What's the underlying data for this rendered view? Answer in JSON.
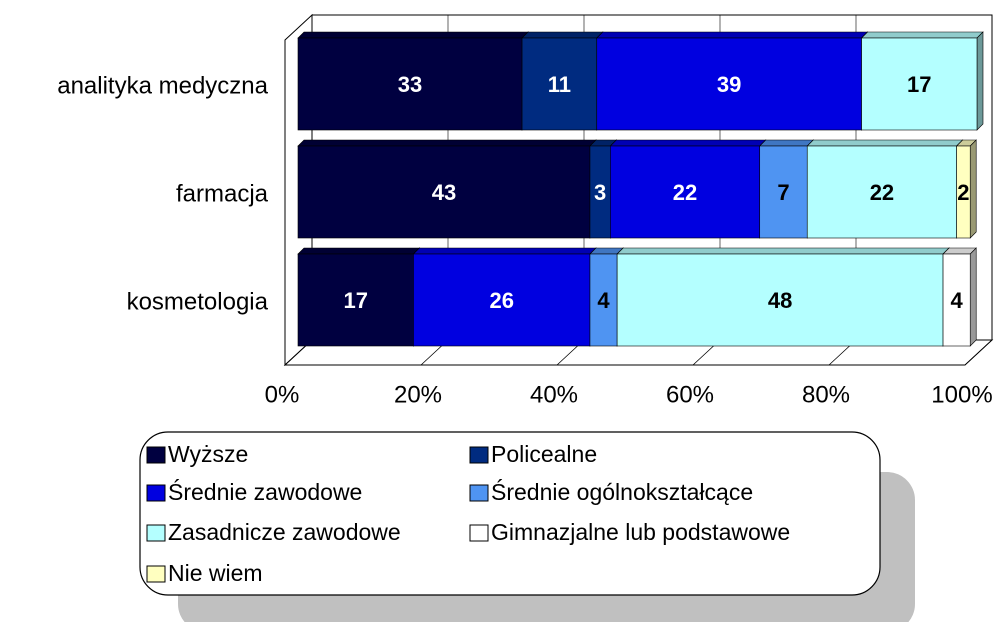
{
  "chart_data": {
    "type": "bar",
    "orientation": "horizontal",
    "stacked": "percent",
    "categories": [
      "analityka medyczna",
      "farmacja",
      "kosmetologia"
    ],
    "series": [
      {
        "name": "Wyższe",
        "color": "#000040",
        "values": [
          33,
          43,
          17
        ]
      },
      {
        "name": "Policealne",
        "color": "#002b80",
        "values": [
          11,
          3,
          null
        ]
      },
      {
        "name": "Średnie zawodowe",
        "color": "#0000e0",
        "values": [
          39,
          22,
          26
        ]
      },
      {
        "name": "Średnie ogólnokształcące",
        "color": "#4f94f2",
        "values": [
          null,
          7,
          4
        ]
      },
      {
        "name": "Zasadnicze zawodowe",
        "color": "#b4ffff",
        "values": [
          17,
          22,
          48
        ]
      },
      {
        "name": "Gimnazjalne lub podstawowe",
        "color": "#ffffff",
        "values": [
          null,
          null,
          4
        ]
      },
      {
        "name": "Nie wiem",
        "color": "#ffffc0",
        "values": [
          null,
          2,
          null
        ]
      }
    ],
    "xlim": [
      0,
      100
    ],
    "xticks": [
      {
        "value": 0,
        "label": "0%"
      },
      {
        "value": 20,
        "label": "20%"
      },
      {
        "value": 40,
        "label": "40%"
      },
      {
        "value": 60,
        "label": "60%"
      },
      {
        "value": 80,
        "label": "80%"
      },
      {
        "value": 100,
        "label": "100%"
      }
    ],
    "grid": true
  }
}
